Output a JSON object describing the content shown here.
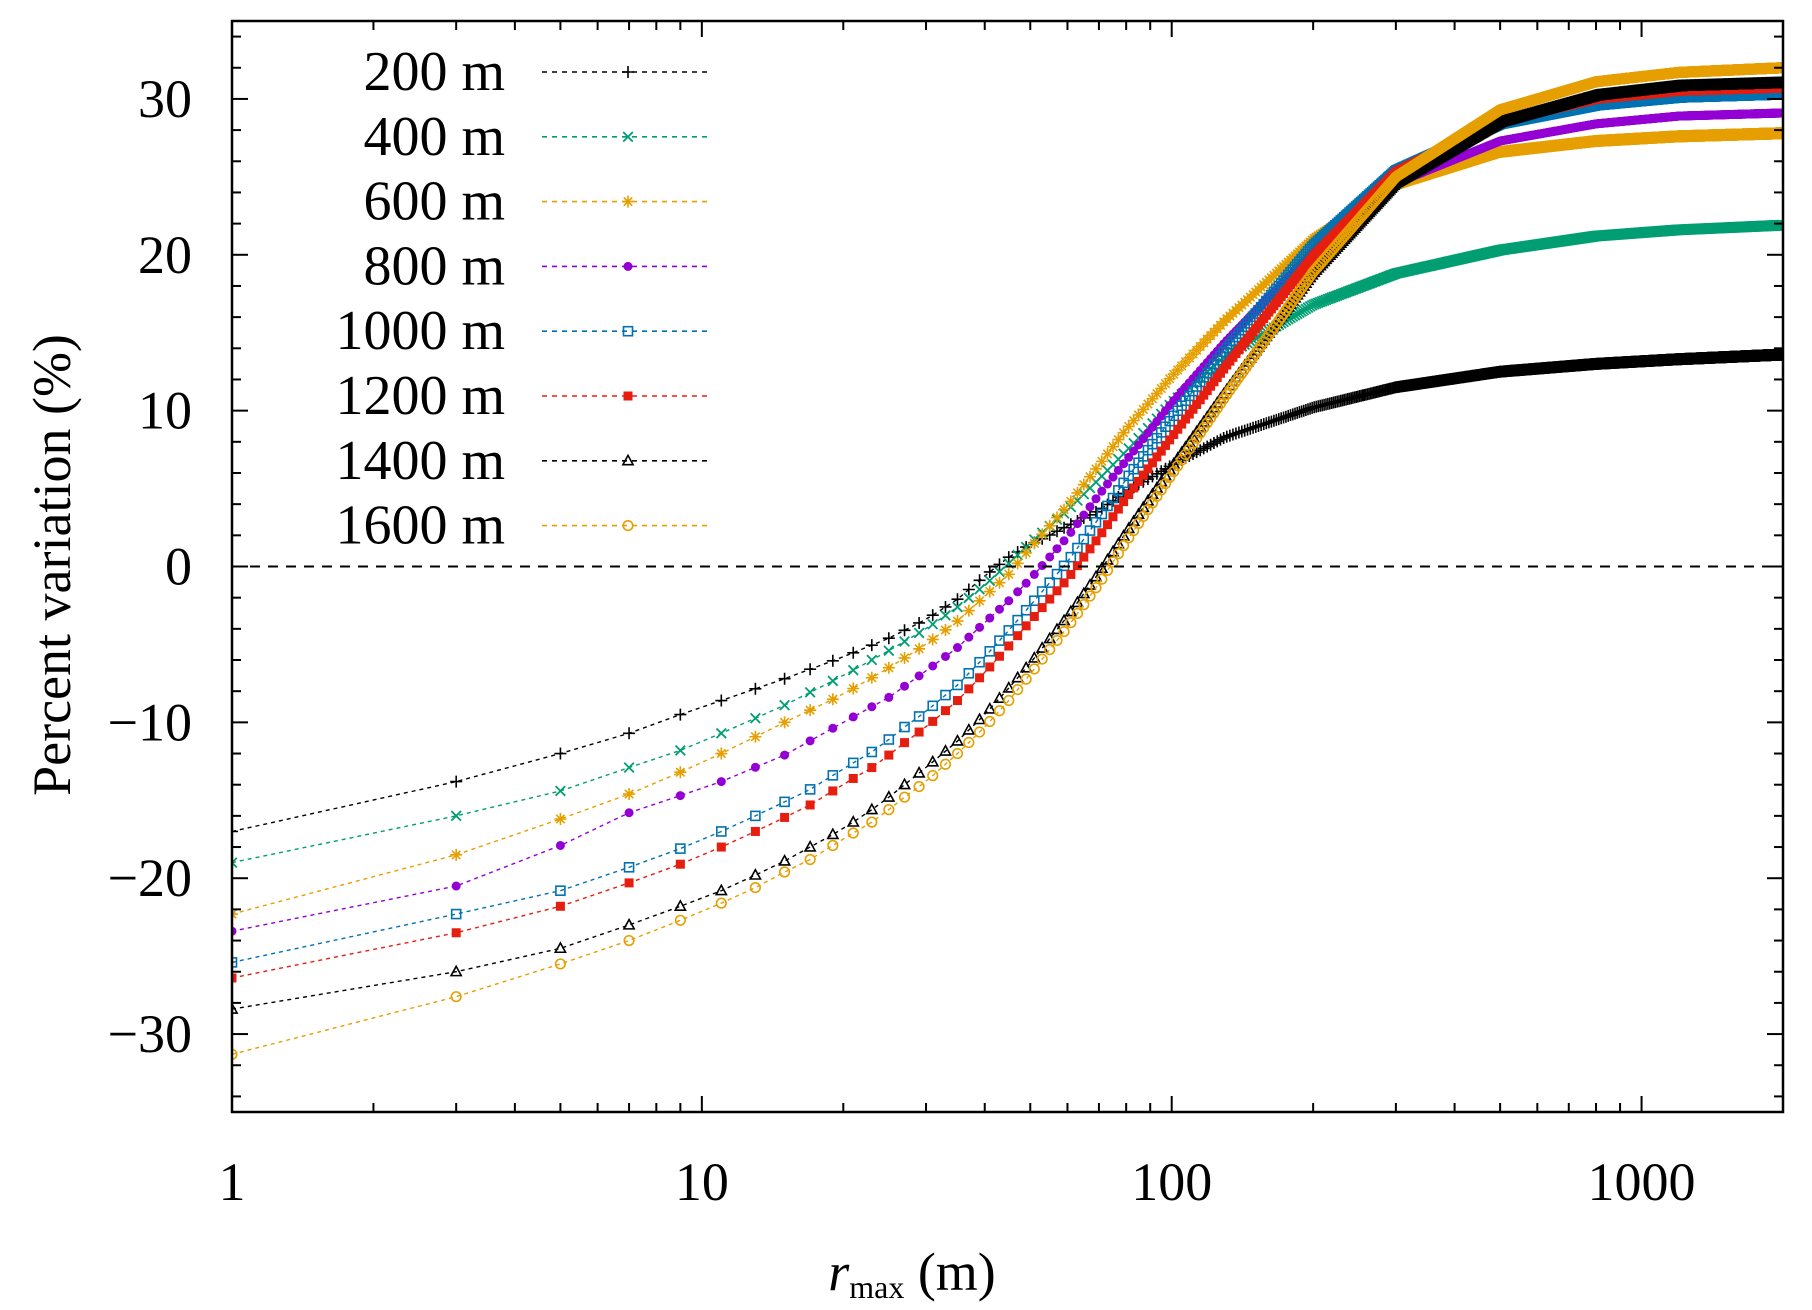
{
  "chart_data": {
    "type": "scatter",
    "title": "",
    "xlabel_main": "r",
    "xlabel_sub": "max",
    "xlabel_unit": " (m)",
    "ylabel": "Percent variation (%)",
    "x_scale": "log",
    "xlim": [
      1,
      2000
    ],
    "ylim": [
      -35,
      35
    ],
    "x_ticks": [
      {
        "value": 1,
        "label": "1"
      },
      {
        "value": 10,
        "label": "10"
      },
      {
        "value": 100,
        "label": "100"
      },
      {
        "value": 1000,
        "label": "1000"
      }
    ],
    "y_ticks": [
      {
        "value": -30,
        "label": "−30"
      },
      {
        "value": -20,
        "label": "−20"
      },
      {
        "value": -10,
        "label": "−10"
      },
      {
        "value": 0,
        "label": "0"
      },
      {
        "value": 10,
        "label": "10"
      },
      {
        "value": 20,
        "label": "20"
      },
      {
        "value": 30,
        "label": "30"
      }
    ],
    "reference_line": {
      "y": 0,
      "style": "dashed",
      "color": "#000000"
    },
    "grid": false,
    "legend_position": "top-left",
    "series": [
      {
        "name": "200 m",
        "color": "#000000",
        "marker": "plus",
        "points": [
          [
            1,
            -17.0
          ],
          [
            3,
            -13.8
          ],
          [
            5,
            -12.0
          ],
          [
            7,
            -10.7
          ],
          [
            9,
            -9.5
          ],
          [
            11,
            -8.6
          ],
          [
            15,
            -7.2
          ],
          [
            20,
            -5.8
          ],
          [
            25,
            -4.6
          ],
          [
            30,
            -3.4
          ],
          [
            35,
            -2.1
          ],
          [
            40,
            -0.6
          ],
          [
            45,
            0.6
          ],
          [
            50,
            1.4
          ],
          [
            60,
            2.6
          ],
          [
            70,
            3.6
          ],
          [
            80,
            4.8
          ],
          [
            100,
            6.5
          ],
          [
            130,
            8.3
          ],
          [
            200,
            10.2
          ],
          [
            300,
            11.5
          ],
          [
            500,
            12.5
          ],
          [
            800,
            13.0
          ],
          [
            1200,
            13.3
          ],
          [
            2000,
            13.6
          ]
        ]
      },
      {
        "name": "400 m",
        "color": "#009e73",
        "marker": "cross",
        "points": [
          [
            1,
            -19.0
          ],
          [
            3,
            -16.0
          ],
          [
            5,
            -14.4
          ],
          [
            7,
            -12.9
          ],
          [
            9,
            -11.8
          ],
          [
            11,
            -10.7
          ],
          [
            15,
            -8.9
          ],
          [
            20,
            -7.0
          ],
          [
            25,
            -5.4
          ],
          [
            30,
            -4.0
          ],
          [
            35,
            -2.6
          ],
          [
            40,
            -1.2
          ],
          [
            45,
            0.2
          ],
          [
            50,
            1.5
          ],
          [
            60,
            3.6
          ],
          [
            70,
            5.6
          ],
          [
            80,
            7.4
          ],
          [
            100,
            10.5
          ],
          [
            130,
            13.5
          ],
          [
            200,
            16.8
          ],
          [
            300,
            18.8
          ],
          [
            500,
            20.3
          ],
          [
            800,
            21.2
          ],
          [
            1200,
            21.6
          ],
          [
            2000,
            21.9
          ]
        ]
      },
      {
        "name": "600 m",
        "color": "#e69f00",
        "marker": "star",
        "points": [
          [
            1,
            -22.3
          ],
          [
            3,
            -18.5
          ],
          [
            5,
            -16.2
          ],
          [
            7,
            -14.6
          ],
          [
            9,
            -13.2
          ],
          [
            11,
            -12.0
          ],
          [
            15,
            -10.0
          ],
          [
            20,
            -8.2
          ],
          [
            25,
            -6.5
          ],
          [
            30,
            -5.0
          ],
          [
            35,
            -3.5
          ],
          [
            40,
            -1.9
          ],
          [
            45,
            -0.5
          ],
          [
            50,
            1.2
          ],
          [
            60,
            3.9
          ],
          [
            70,
            6.5
          ],
          [
            80,
            8.8
          ],
          [
            100,
            12.2
          ],
          [
            130,
            15.8
          ],
          [
            200,
            21.0
          ],
          [
            300,
            24.5
          ],
          [
            500,
            26.6
          ],
          [
            800,
            27.3
          ],
          [
            1200,
            27.6
          ],
          [
            2000,
            27.8
          ]
        ]
      },
      {
        "name": "800 m",
        "color": "#9400d3",
        "marker": "dot",
        "points": [
          [
            1,
            -23.4
          ],
          [
            3,
            -20.5
          ],
          [
            5,
            -17.9
          ],
          [
            7,
            -15.8
          ],
          [
            9,
            -14.7
          ],
          [
            11,
            -13.8
          ],
          [
            15,
            -12.1
          ],
          [
            20,
            -10.0
          ],
          [
            25,
            -8.4
          ],
          [
            30,
            -6.7
          ],
          [
            35,
            -5.2
          ],
          [
            40,
            -3.6
          ],
          [
            45,
            -2.2
          ],
          [
            50,
            -0.8
          ],
          [
            60,
            1.9
          ],
          [
            70,
            4.6
          ],
          [
            80,
            6.8
          ],
          [
            100,
            10.5
          ],
          [
            130,
            14.4
          ],
          [
            200,
            20.2
          ],
          [
            300,
            24.6
          ],
          [
            500,
            27.3
          ],
          [
            800,
            28.4
          ],
          [
            1200,
            28.9
          ],
          [
            2000,
            29.1
          ]
        ]
      },
      {
        "name": "1000 m",
        "color": "#0072b2",
        "marker": "square-open",
        "points": [
          [
            1,
            -25.4
          ],
          [
            3,
            -22.3
          ],
          [
            5,
            -20.8
          ],
          [
            7,
            -19.3
          ],
          [
            9,
            -18.1
          ],
          [
            11,
            -17.0
          ],
          [
            13,
            -16.0
          ],
          [
            15,
            -15.1
          ],
          [
            17,
            -14.3
          ],
          [
            19,
            -13.4
          ],
          [
            21,
            -12.6
          ],
          [
            23,
            -11.9
          ],
          [
            25,
            -11.1
          ],
          [
            27,
            -10.3
          ],
          [
            30,
            -9.3
          ],
          [
            35,
            -7.6
          ],
          [
            40,
            -5.8
          ],
          [
            45,
            -4.1
          ],
          [
            50,
            -2.5
          ],
          [
            60,
            0.3
          ],
          [
            70,
            3.1
          ],
          [
            80,
            5.6
          ],
          [
            100,
            9.5
          ],
          [
            130,
            13.9
          ],
          [
            200,
            20.6
          ],
          [
            300,
            25.4
          ],
          [
            500,
            28.4
          ],
          [
            800,
            29.6
          ],
          [
            1200,
            30.1
          ],
          [
            2000,
            30.3
          ]
        ]
      },
      {
        "name": "1200 m",
        "color": "#e51e10",
        "marker": "square-filled",
        "points": [
          [
            1,
            -26.4
          ],
          [
            3,
            -23.5
          ],
          [
            5,
            -21.8
          ],
          [
            7,
            -20.3
          ],
          [
            9,
            -19.1
          ],
          [
            11,
            -18.0
          ],
          [
            13,
            -17.0
          ],
          [
            15,
            -16.1
          ],
          [
            17,
            -15.3
          ],
          [
            19,
            -14.4
          ],
          [
            21,
            -13.6
          ],
          [
            23,
            -12.9
          ],
          [
            25,
            -12.1
          ],
          [
            27,
            -11.3
          ],
          [
            30,
            -10.3
          ],
          [
            35,
            -8.6
          ],
          [
            40,
            -6.8
          ],
          [
            45,
            -5.1
          ],
          [
            50,
            -3.5
          ],
          [
            60,
            -0.8
          ],
          [
            70,
            1.9
          ],
          [
            80,
            4.4
          ],
          [
            100,
            8.3
          ],
          [
            130,
            12.8
          ],
          [
            200,
            19.9
          ],
          [
            300,
            25.3
          ],
          [
            500,
            28.6
          ],
          [
            800,
            30.0
          ],
          [
            1200,
            30.5
          ],
          [
            2000,
            30.7
          ]
        ]
      },
      {
        "name": "1400 m",
        "color": "#000000",
        "marker": "triangle-open",
        "points": [
          [
            1,
            -28.4
          ],
          [
            3,
            -26.0
          ],
          [
            5,
            -24.5
          ],
          [
            7,
            -23.0
          ],
          [
            9,
            -21.8
          ],
          [
            11,
            -20.8
          ],
          [
            13,
            -19.8
          ],
          [
            15,
            -18.9
          ],
          [
            17,
            -18.0
          ],
          [
            19,
            -17.2
          ],
          [
            21,
            -16.4
          ],
          [
            23,
            -15.6
          ],
          [
            25,
            -14.8
          ],
          [
            27,
            -14.0
          ],
          [
            30,
            -12.9
          ],
          [
            35,
            -11.2
          ],
          [
            40,
            -9.5
          ],
          [
            45,
            -7.8
          ],
          [
            50,
            -6.2
          ],
          [
            60,
            -3.2
          ],
          [
            70,
            -0.4
          ],
          [
            80,
            2.2
          ],
          [
            100,
            6.4
          ],
          [
            130,
            11.2
          ],
          [
            200,
            18.8
          ],
          [
            300,
            24.6
          ],
          [
            500,
            28.5
          ],
          [
            800,
            30.2
          ],
          [
            1200,
            30.8
          ],
          [
            2000,
            31.0
          ]
        ]
      },
      {
        "name": "1600 m",
        "color": "#e69f00",
        "marker": "circle-open",
        "points": [
          [
            1,
            -31.3
          ],
          [
            3,
            -27.6
          ],
          [
            5,
            -25.5
          ],
          [
            7,
            -24.0
          ],
          [
            9,
            -22.7
          ],
          [
            11,
            -21.6
          ],
          [
            13,
            -20.6
          ],
          [
            15,
            -19.6
          ],
          [
            17,
            -18.8
          ],
          [
            19,
            -17.9
          ],
          [
            21,
            -17.1
          ],
          [
            23,
            -16.4
          ],
          [
            25,
            -15.6
          ],
          [
            27,
            -14.8
          ],
          [
            30,
            -13.8
          ],
          [
            35,
            -12.0
          ],
          [
            40,
            -10.3
          ],
          [
            45,
            -8.6
          ],
          [
            50,
            -6.9
          ],
          [
            60,
            -3.9
          ],
          [
            70,
            -1.1
          ],
          [
            80,
            1.6
          ],
          [
            100,
            5.9
          ],
          [
            130,
            10.9
          ],
          [
            200,
            18.9
          ],
          [
            300,
            25.0
          ],
          [
            500,
            29.3
          ],
          [
            800,
            31.1
          ],
          [
            1200,
            31.7
          ],
          [
            2000,
            32.0
          ]
        ]
      }
    ]
  }
}
